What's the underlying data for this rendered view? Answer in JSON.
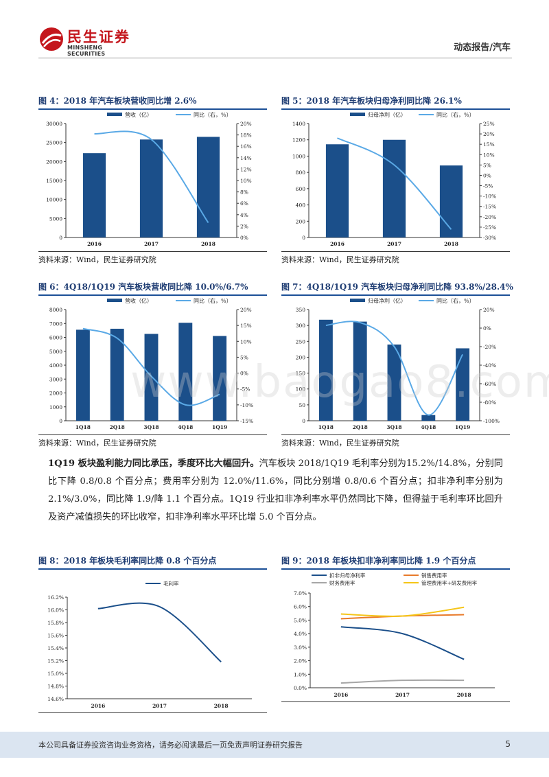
{
  "header": {
    "logo_cn": "民生证券",
    "logo_en": "MINSHENG SECURITIES",
    "report_type": "动态报告/汽车"
  },
  "watermark": "www.baogao8.com",
  "colors": {
    "bar": "#1b4f8a",
    "line": "#5aa9e6",
    "orange": "#e87a2a",
    "gray": "#a6a6a6",
    "yellow": "#f5c518"
  },
  "source": "资料来源：Wind，民生证券研究院",
  "figures": [
    {
      "title": "图 4：2018 年汽车板块营收同比增 2.6%",
      "chart_data": {
        "type": "bar+line",
        "categories": [
          "2016",
          "2017",
          "2018"
        ],
        "series": [
          {
            "name": "营收（亿）",
            "kind": "bar",
            "axis": "left",
            "values": [
              22200,
              25800,
              26500
            ]
          },
          {
            "name": "同比（右，%）",
            "kind": "line",
            "axis": "right",
            "values": [
              18.2,
              17.2,
              2.6
            ]
          }
        ],
        "left_ticks": [
          "30000",
          "25000",
          "20000",
          "15000",
          "10000",
          "5000",
          "0"
        ],
        "right_ticks": [
          "20%",
          "18%",
          "16%",
          "14%",
          "12%",
          "10%",
          "8%",
          "6%",
          "4%",
          "2%",
          "0%"
        ],
        "left_range": [
          0,
          30000
        ],
        "right_range": [
          0,
          20
        ]
      }
    },
    {
      "title": "图 5：2018 年汽车板块归母净利同比降 26.1%",
      "chart_data": {
        "type": "bar+line",
        "categories": [
          "2016",
          "2017",
          "2018"
        ],
        "series": [
          {
            "name": "归母净利（亿）",
            "kind": "bar",
            "axis": "left",
            "values": [
              1145,
              1200,
              885
            ]
          },
          {
            "name": "同比（右，%）",
            "kind": "line",
            "axis": "right",
            "values": [
              18.0,
              5.0,
              -26.1
            ]
          }
        ],
        "left_ticks": [
          "1400",
          "1200",
          "1000",
          "800",
          "600",
          "400",
          "200",
          "0"
        ],
        "right_ticks": [
          "25%",
          "20%",
          "15%",
          "10%",
          "5%",
          "0%",
          "-5%",
          "-10%",
          "-15%",
          "-20%",
          "-25%",
          "-30%"
        ],
        "left_range": [
          0,
          1400
        ],
        "right_range": [
          -30,
          25
        ]
      }
    },
    {
      "title": "图 6：4Q18/1Q19 汽车板块营收同比降 10.0%/6.7%",
      "chart_data": {
        "type": "bar+line",
        "categories": [
          "1Q18",
          "2Q18",
          "3Q18",
          "4Q18",
          "1Q19"
        ],
        "series": [
          {
            "name": "营收（亿）",
            "kind": "bar",
            "axis": "left",
            "values": [
              6550,
              6620,
              6250,
              7050,
              6100
            ]
          },
          {
            "name": "同比（右，%）",
            "kind": "line",
            "axis": "right",
            "values": [
              14.0,
              11.0,
              -1.0,
              -10.0,
              -6.7
            ]
          }
        ],
        "left_ticks": [
          "8000",
          "7000",
          "6000",
          "5000",
          "4000",
          "3000",
          "2000",
          "1000",
          "0"
        ],
        "right_ticks": [
          "20%",
          "15%",
          "10%",
          "5%",
          "0%",
          "-5%",
          "-10%",
          "-15%"
        ],
        "left_range": [
          0,
          8000
        ],
        "right_range": [
          -15,
          20
        ]
      }
    },
    {
      "title": "图 7：4Q18/1Q19 汽车板块归母净利同比降 93.8%/28.4%",
      "chart_data": {
        "type": "bar+line",
        "categories": [
          "1Q18",
          "2Q18",
          "3Q18",
          "4Q18",
          "1Q19"
        ],
        "series": [
          {
            "name": "归母净利（亿）",
            "kind": "bar",
            "axis": "left",
            "values": [
              318,
              312,
              240,
              18,
              228
            ]
          },
          {
            "name": "同比（右，%）",
            "kind": "line",
            "axis": "right",
            "values": [
              3.0,
              6.0,
              -20.0,
              -93.8,
              -28.4
            ]
          }
        ],
        "left_ticks": [
          "350",
          "300",
          "250",
          "200",
          "150",
          "100",
          "50",
          "0"
        ],
        "right_ticks": [
          "20%",
          "0%",
          "-20%",
          "-40%",
          "-60%",
          "-80%",
          "-100%"
        ],
        "left_range": [
          0,
          350
        ],
        "right_range": [
          -100,
          20
        ]
      }
    },
    {
      "title": "图 8：2018 年板块毛利率同比降 0.8 个百分点",
      "chart_data": {
        "type": "line",
        "categories": [
          "2016",
          "2017",
          "2018"
        ],
        "series": [
          {
            "name": "毛利率",
            "values": [
              16.02,
              16.05,
              15.18
            ],
            "color": "#1b4f8a"
          }
        ],
        "left_ticks": [
          "16.2%",
          "16.0%",
          "15.8%",
          "15.6%",
          "15.4%",
          "15.2%",
          "15.0%",
          "14.8%",
          "14.6%"
        ],
        "left_range": [
          14.6,
          16.2
        ]
      }
    },
    {
      "title": "图 9：2018 年板块扣非净利率同比降 1.9 个百分点",
      "chart_data": {
        "type": "line",
        "categories": [
          "2016",
          "2017",
          "2018"
        ],
        "series": [
          {
            "name": "扣非归母净利率",
            "values": [
              4.5,
              4.0,
              2.1
            ],
            "color": "#1b4f8a"
          },
          {
            "name": "销售费用率",
            "values": [
              5.1,
              5.3,
              5.4
            ],
            "color": "#e87a2a"
          },
          {
            "name": "财务费用率",
            "values": [
              0.35,
              0.55,
              0.55
            ],
            "color": "#a6a6a6"
          },
          {
            "name": "管理费用率+研发费用率",
            "values": [
              5.45,
              5.3,
              5.95
            ],
            "color": "#f5c518"
          }
        ],
        "left_ticks": [
          "7.0%",
          "6.0%",
          "5.0%",
          "4.0%",
          "3.0%",
          "2.0%",
          "1.0%",
          "0.0%"
        ],
        "left_range": [
          0,
          7
        ]
      }
    }
  ],
  "paragraph": {
    "lead": "1Q19 板块盈利能力同比承压，季度环比大幅回升。",
    "body": "汽车板块 2018/1Q19 毛利率分别为15.2%/14.8%，分别同比下降 0.8/0.8 个百分点；费用率分别为 12.0%/11.6%，同比分别增 0.8/0.6 个百分点；扣非净利率分别为 2.1%/3.0%，同比降 1.9/降 1.1 个百分点。1Q19 行业扣非净利率水平仍然同比下降，但得益于毛利率环比回升及资产减值损失的环比收窄，扣非净利率水平环比增 5.0 个百分点。"
  },
  "footer": {
    "disclaimer": "本公司具备证券投资咨询业务资格，请务必阅读最后一页免责声明证券研究报告",
    "page": "5"
  }
}
